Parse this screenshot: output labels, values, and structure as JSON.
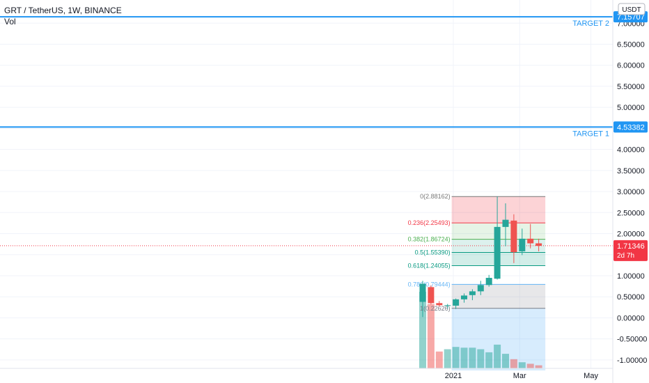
{
  "header": {
    "symbol_line": "GRT / TetherUS, 1W, BINANCE",
    "vol_label": "Vol"
  },
  "chart_data": {
    "type": "candlestick",
    "currency_badge": "USDT",
    "y_ticks": [
      "7.00000",
      "6.50000",
      "6.00000",
      "5.50000",
      "5.00000",
      "4.50000",
      "4.00000",
      "3.50000",
      "3.00000",
      "2.50000",
      "2.00000",
      "1.50000",
      "1.00000",
      "0.50000",
      "0.00000",
      "-0.50000",
      "-1.00000"
    ],
    "y_tick_values": [
      7,
      6.5,
      6,
      5.5,
      5,
      4.5,
      4,
      3.5,
      3,
      2.5,
      2,
      1.5,
      1,
      0.5,
      0,
      -0.5,
      -1
    ],
    "ylim": [
      -1.2,
      7.55
    ],
    "x_ticks": [
      {
        "label": "2021",
        "bar": 3.7
      },
      {
        "label": "Mar",
        "bar": 11.7
      },
      {
        "label": "May",
        "bar": 20.3
      }
    ],
    "candles": [
      {
        "o": 0.38,
        "h": 0.88,
        "l": 0.02,
        "c": 0.81
      },
      {
        "o": 0.73,
        "h": 0.77,
        "l": 0.32,
        "c": 0.35
      },
      {
        "o": 0.35,
        "h": 0.4,
        "l": 0.27,
        "c": 0.3
      },
      {
        "o": 0.29,
        "h": 0.33,
        "l": 0.22,
        "c": 0.3
      },
      {
        "o": 0.29,
        "h": 0.46,
        "l": 0.21,
        "c": 0.44
      },
      {
        "o": 0.44,
        "h": 0.58,
        "l": 0.36,
        "c": 0.53
      },
      {
        "o": 0.54,
        "h": 0.68,
        "l": 0.42,
        "c": 0.63
      },
      {
        "o": 0.63,
        "h": 0.88,
        "l": 0.54,
        "c": 0.78
      },
      {
        "o": 0.78,
        "h": 1.02,
        "l": 0.74,
        "c": 0.95
      },
      {
        "o": 0.93,
        "h": 2.88,
        "l": 0.91,
        "c": 2.16
      },
      {
        "o": 2.16,
        "h": 2.72,
        "l": 1.7,
        "c": 2.33
      },
      {
        "o": 2.31,
        "h": 2.46,
        "l": 1.3,
        "c": 1.56
      },
      {
        "o": 1.58,
        "h": 2.12,
        "l": 1.49,
        "c": 1.88
      },
      {
        "o": 1.88,
        "h": 2.23,
        "l": 1.65,
        "c": 1.77
      },
      {
        "o": 1.77,
        "h": 1.88,
        "l": 1.58,
        "c": 1.71
      }
    ],
    "volumes": [
      1.0,
      0.84,
      0.22,
      0.25,
      0.28,
      0.27,
      0.27,
      0.25,
      0.21,
      0.31,
      0.19,
      0.12,
      0.08,
      0.06,
      0.04
    ],
    "hlines": [
      {
        "value": 7.15,
        "label": "TARGET 2",
        "price": "7.15707",
        "color": "#2196f3"
      },
      {
        "value": 4.53382,
        "label": "TARGET 1",
        "price": "4.53382",
        "color": "#2196f3"
      }
    ],
    "fib": {
      "levels": [
        {
          "ratio": "0",
          "price": "2.88162",
          "value": 2.88162,
          "color": "#777777",
          "fill": "rgba(242,54,69,0.22)"
        },
        {
          "ratio": "0.236",
          "price": "2.25493",
          "value": 2.25493,
          "color": "#f23645",
          "fill": "rgba(76,175,80,0.14)"
        },
        {
          "ratio": "0.382",
          "price": "1.86724",
          "value": 1.86724,
          "color": "#4caf50",
          "fill": "rgba(8,153,129,0.14)"
        },
        {
          "ratio": "0.5",
          "price": "1.55390",
          "value": 1.5539,
          "color": "#089981",
          "fill": "rgba(8,153,129,0.18)"
        },
        {
          "ratio": "0.618",
          "price": "1.24055",
          "value": 1.24055,
          "color": "#089981",
          "fill": "rgba(255,255,255,0)"
        },
        {
          "ratio": "0.786",
          "price": "0.79444",
          "value": 0.79444,
          "color": "#64b5f6",
          "fill": "rgba(120,123,134,0.18)"
        },
        {
          "ratio": "1",
          "price": "0.22626",
          "value": 0.22626,
          "color": "#787b86",
          "fill": "rgba(33,150,243,0.18)"
        }
      ],
      "start_bar": 3.5,
      "end_bar": 14.8,
      "fill_bottom": -1.25
    },
    "last_price": {
      "value": 1.71346,
      "label": "1.71346",
      "countdown": "2d 7h",
      "color": "#f23645"
    },
    "colors": {
      "up": "#26a69a",
      "down": "#ef5350",
      "grid": "#f0f3fa",
      "axis_text": "#131722"
    }
  }
}
